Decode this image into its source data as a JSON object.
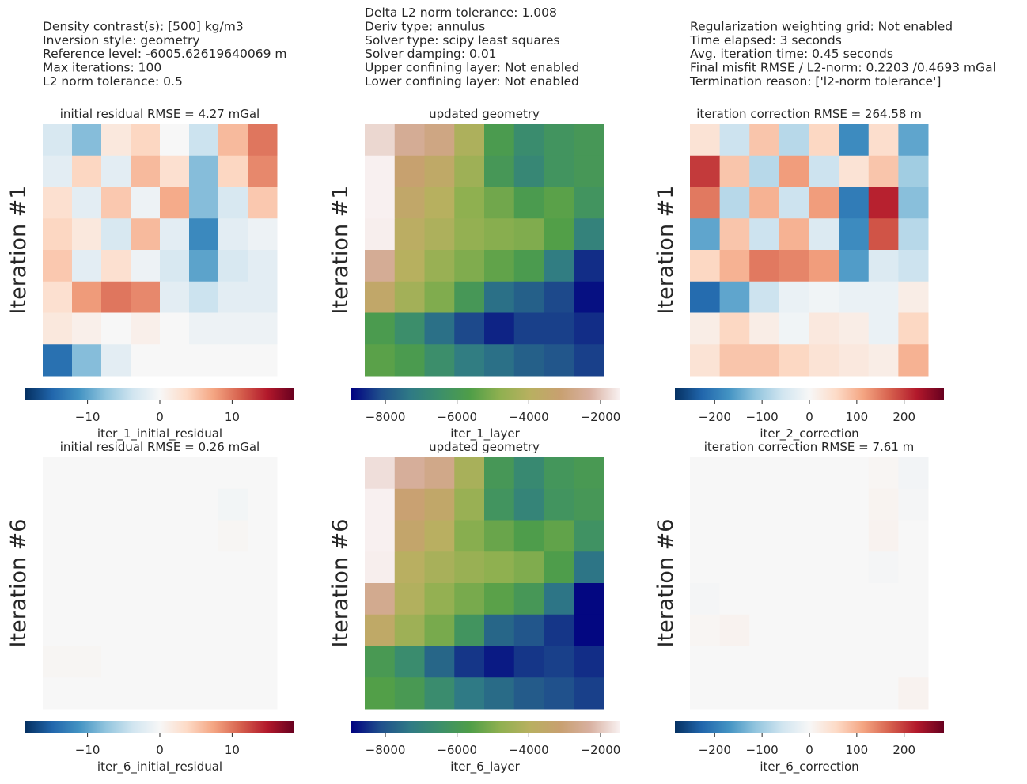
{
  "info": {
    "columns": [
      [
        "Density contrast(s): [500] kg/m3",
        "Inversion style: geometry",
        "Reference level: -6005.62619640069 m",
        "Max iterations: 100",
        "L2 norm tolerance: 0.5"
      ],
      [
        "Delta L2 norm tolerance: 1.008",
        "Deriv type: annulus",
        "Solver type: scipy least squares",
        "Solver damping: 0.01",
        "Upper confining layer: Not enabled",
        "Lower confining layer: Not enabled"
      ],
      [
        "Regularization weighting grid: Not enabled",
        "Time elapsed: 3 seconds",
        "Avg. iteration time: 0.45 seconds",
        "Final misfit RMSE / L2-norm: 0.2203 /0.4693 mGal",
        "Termination reason: ['l2-norm tolerance']"
      ]
    ]
  },
  "chart_data": [
    {
      "type": "heatmap",
      "title": "initial residual RMSE = 4.27 mGal",
      "ylabel": "Iteration #1",
      "colorbar_label": "iter_1_initial_residual",
      "zlim": [
        -18.6,
        18.6
      ],
      "zticks": [
        {
          "value": -10,
          "label": "−10"
        },
        0,
        10
      ],
      "colormap": [
        "#053061",
        "#2166ac",
        "#4393c3",
        "#92c5de",
        "#d1e5f0",
        "#f7f7f7",
        "#fddbc7",
        "#f4a582",
        "#d6604d",
        "#b2182b",
        "#67001f"
      ],
      "z": [
        [
          -3,
          -8,
          2,
          4,
          0,
          -4,
          6,
          10
        ],
        [
          -2,
          4,
          -2,
          6,
          3,
          -8,
          4,
          9
        ],
        [
          3,
          -2,
          5,
          -1,
          7,
          -8,
          -3,
          5
        ],
        [
          4,
          2,
          -3,
          6,
          -2,
          -12,
          -2,
          -1
        ],
        [
          5,
          -2,
          3,
          -1,
          -3,
          -10,
          -3,
          -2
        ],
        [
          3,
          8,
          10,
          9,
          -2,
          -4,
          -2,
          -2
        ],
        [
          2,
          1,
          0,
          1,
          0,
          -1,
          -1,
          -1
        ],
        [
          -14,
          -8,
          -2,
          0,
          0,
          0,
          0,
          0
        ]
      ]
    },
    {
      "type": "heatmap",
      "title": "updated geometry",
      "ylabel": "Iteration #1",
      "colorbar_label": "iter_1_layer",
      "zlim": [
        -8972,
        -1470
      ],
      "zticks": [
        {
          "value": -8000,
          "label": "−8000"
        },
        {
          "value": -6000,
          "label": "−6000"
        },
        {
          "value": -4000,
          "label": "−4000"
        },
        {
          "value": -2000,
          "label": "−2000"
        }
      ],
      "colormap": [
        "#000080",
        "#1f4f8c",
        "#2f7a85",
        "#3c8f6a",
        "#4f9e48",
        "#8fb050",
        "#b8b060",
        "#c8a070",
        "#d8b0a0",
        "#f8f0f0"
      ],
      "z": [
        [
          -1800,
          -2500,
          -2800,
          -4200,
          -5800,
          -6600,
          -6200,
          -6000
        ],
        [
          -1400,
          -3200,
          -3600,
          -4500,
          -6000,
          -6800,
          -6200,
          -6000
        ],
        [
          -1300,
          -3500,
          -4000,
          -4800,
          -5200,
          -5800,
          -5500,
          -6200
        ],
        [
          -1500,
          -3800,
          -4200,
          -4700,
          -4900,
          -5000,
          -5600,
          -7000
        ],
        [
          -2500,
          -4000,
          -4600,
          -5000,
          -5400,
          -5800,
          -7200,
          -8500
        ],
        [
          -3500,
          -4400,
          -5000,
          -6000,
          -7500,
          -7800,
          -8200,
          -8800
        ],
        [
          -5800,
          -6500,
          -7500,
          -8200,
          -8600,
          -8300,
          -8300,
          -8500
        ],
        [
          -5500,
          -5800,
          -6500,
          -7200,
          -7500,
          -7800,
          -8000,
          -8300
        ]
      ]
    },
    {
      "type": "heatmap",
      "title": "iteration correction RMSE = 264.58 m",
      "ylabel": "Iteration #1",
      "colorbar_label": "iter_2_correction",
      "zlim": [
        -284,
        284
      ],
      "zticks": [
        {
          "value": -200,
          "label": "−200"
        },
        {
          "value": -100,
          "label": "−100"
        },
        0,
        100,
        200
      ],
      "colormap": [
        "#053061",
        "#2166ac",
        "#4393c3",
        "#92c5de",
        "#d1e5f0",
        "#f7f7f7",
        "#fddbc7",
        "#f4a582",
        "#d6604d",
        "#b2182b",
        "#67001f"
      ],
      "z": [
        [
          40,
          -60,
          80,
          -80,
          60,
          -180,
          50,
          -150
        ],
        [
          200,
          80,
          -80,
          120,
          -60,
          40,
          80,
          -100
        ],
        [
          150,
          -80,
          100,
          -60,
          120,
          -200,
          220,
          -120
        ],
        [
          -150,
          80,
          -60,
          100,
          -40,
          -180,
          180,
          -80
        ],
        [
          60,
          100,
          150,
          140,
          120,
          -160,
          -40,
          -60
        ],
        [
          -220,
          -150,
          -60,
          -20,
          -10,
          -20,
          -20,
          20
        ],
        [
          20,
          60,
          20,
          -10,
          30,
          20,
          -20,
          60
        ],
        [
          40,
          80,
          80,
          60,
          40,
          30,
          20,
          100
        ]
      ]
    },
    {
      "type": "heatmap",
      "title": "initial residual RMSE = 0.26 mGal",
      "ylabel": "Iteration #6",
      "colorbar_label": "iter_6_initial_residual",
      "zlim": [
        -18.6,
        18.6
      ],
      "zticks": [
        {
          "value": -10,
          "label": "−10"
        },
        0,
        10
      ],
      "colormap": [
        "#053061",
        "#2166ac",
        "#4393c3",
        "#92c5de",
        "#d1e5f0",
        "#f7f7f7",
        "#fddbc7",
        "#f4a582",
        "#d6604d",
        "#b2182b",
        "#67001f"
      ],
      "z": [
        [
          0,
          0,
          0,
          0,
          0,
          0,
          0,
          0
        ],
        [
          0,
          0,
          0,
          0,
          0,
          0,
          -0.5,
          0
        ],
        [
          0,
          0,
          0,
          0,
          0,
          0,
          0.3,
          0
        ],
        [
          0,
          0,
          0,
          0,
          0,
          0,
          0,
          0
        ],
        [
          0,
          0,
          0,
          0,
          0,
          0,
          0,
          0
        ],
        [
          0,
          0,
          0,
          0,
          0,
          0,
          0,
          0
        ],
        [
          0.3,
          0.3,
          0,
          0,
          0,
          0,
          0,
          0
        ],
        [
          0,
          0,
          0,
          0,
          0,
          0,
          0,
          0
        ]
      ]
    },
    {
      "type": "heatmap",
      "title": "updated geometry",
      "ylabel": "Iteration #6",
      "colorbar_label": "iter_6_layer",
      "zlim": [
        -8972,
        -1470
      ],
      "zticks": [
        {
          "value": -8000,
          "label": "−8000"
        },
        {
          "value": -6000,
          "label": "−6000"
        },
        {
          "value": -4000,
          "label": "−4000"
        },
        {
          "value": -2000,
          "label": "−2000"
        }
      ],
      "colormap": [
        "#000080",
        "#1f4f8c",
        "#2f7a85",
        "#3c8f6a",
        "#4f9e48",
        "#8fb050",
        "#b8b060",
        "#c8a070",
        "#d8b0a0",
        "#f8f0f0"
      ],
      "z": [
        [
          -1700,
          -2400,
          -2700,
          -4300,
          -6000,
          -6700,
          -6100,
          -5900
        ],
        [
          -1300,
          -3100,
          -3500,
          -4600,
          -6200,
          -6900,
          -6200,
          -6000
        ],
        [
          -1200,
          -3400,
          -3900,
          -4900,
          -5300,
          -5700,
          -5400,
          -6300
        ],
        [
          -1500,
          -3900,
          -4300,
          -4600,
          -4800,
          -5000,
          -5700,
          -7400
        ],
        [
          -2600,
          -4100,
          -4700,
          -5100,
          -5500,
          -6000,
          -7400,
          -8900
        ],
        [
          -3600,
          -4500,
          -5100,
          -6200,
          -7700,
          -8000,
          -8400,
          -8900
        ],
        [
          -5900,
          -6600,
          -7700,
          -8400,
          -8700,
          -8400,
          -8300,
          -8500
        ],
        [
          -5600,
          -5900,
          -6600,
          -7300,
          -7600,
          -7900,
          -8100,
          -8300
        ]
      ]
    },
    {
      "type": "heatmap",
      "title": "iteration correction RMSE = 7.61 m",
      "ylabel": "Iteration #6",
      "colorbar_label": "iter_6_correction",
      "zlim": [
        -284,
        284
      ],
      "zticks": [
        {
          "value": -200,
          "label": "−200"
        },
        {
          "value": -100,
          "label": "−100"
        },
        0,
        100,
        200
      ],
      "colormap": [
        "#053061",
        "#2166ac",
        "#4393c3",
        "#92c5de",
        "#d1e5f0",
        "#f7f7f7",
        "#fddbc7",
        "#f4a582",
        "#d6604d",
        "#b2182b",
        "#67001f"
      ],
      "z": [
        [
          0,
          0,
          0,
          0,
          0,
          0,
          5,
          -8
        ],
        [
          0,
          0,
          0,
          0,
          0,
          0,
          8,
          -5
        ],
        [
          0,
          0,
          0,
          0,
          0,
          0,
          10,
          0
        ],
        [
          0,
          0,
          0,
          0,
          0,
          0,
          -5,
          0
        ],
        [
          -5,
          0,
          0,
          0,
          0,
          0,
          0,
          0
        ],
        [
          5,
          10,
          0,
          0,
          0,
          0,
          0,
          0
        ],
        [
          0,
          0,
          0,
          0,
          0,
          0,
          0,
          0
        ],
        [
          0,
          0,
          0,
          0,
          0,
          0,
          0,
          10
        ]
      ]
    }
  ]
}
